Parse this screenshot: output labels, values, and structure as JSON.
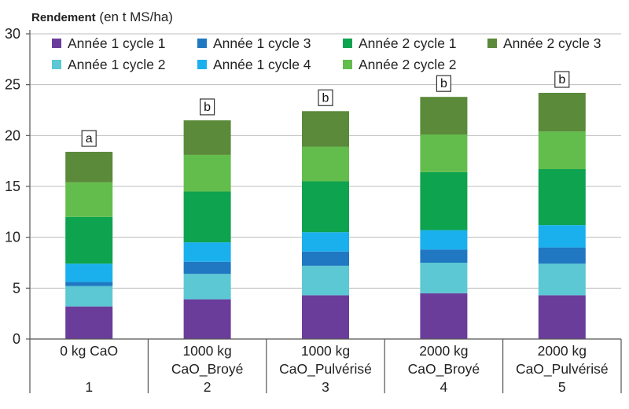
{
  "chart_data": {
    "type": "bar",
    "stacked": true,
    "ylabel_bold": "Rendement",
    "ylabel_rest": " (en t MS/ha)",
    "ylim": [
      0,
      30
    ],
    "yticks": [
      0,
      5,
      10,
      15,
      20,
      25,
      30
    ],
    "grid": true,
    "legend_position": "top",
    "categories": [
      {
        "line1": "0 kg CaO",
        "line2": "",
        "line3": "1"
      },
      {
        "line1": "1000 kg",
        "line2": "CaO_Broyé",
        "line3": "2"
      },
      {
        "line1": "1000 kg",
        "line2": "CaO_Pulvérisé",
        "line3": "3"
      },
      {
        "line1": "2000 kg",
        "line2": "CaO_Broyé",
        "line3": "4"
      },
      {
        "line1": "2000 kg",
        "line2": "CaO_Pulvérisé",
        "line3": "5"
      }
    ],
    "series": [
      {
        "name": "Année 1 cycle 1",
        "color": "#6a3d9a",
        "values": [
          3.2,
          3.9,
          4.3,
          4.5,
          4.3
        ]
      },
      {
        "name": "Année 1 cycle 2",
        "color": "#5bc8d3",
        "values": [
          2.0,
          2.5,
          2.9,
          3.0,
          3.1
        ]
      },
      {
        "name": "Année 1 cycle 3",
        "color": "#1f78c1",
        "values": [
          0.4,
          1.2,
          1.4,
          1.3,
          1.6
        ]
      },
      {
        "name": "Année 1 cycle 4",
        "color": "#1ab0ee",
        "values": [
          1.8,
          1.9,
          1.9,
          1.9,
          2.2
        ]
      },
      {
        "name": "Année 2 cycle 1",
        "color": "#0da34f",
        "values": [
          4.6,
          5.0,
          5.0,
          5.7,
          5.5
        ]
      },
      {
        "name": "Année 2 cycle 2",
        "color": "#63bd4c",
        "values": [
          3.4,
          3.6,
          3.4,
          3.7,
          3.7
        ]
      },
      {
        "name": "Année 2 cycle 3",
        "color": "#5a8a3a",
        "values": [
          3.0,
          3.4,
          3.5,
          3.7,
          3.8
        ]
      }
    ],
    "annotations": [
      "a",
      "b",
      "b",
      "b",
      "b"
    ]
  }
}
